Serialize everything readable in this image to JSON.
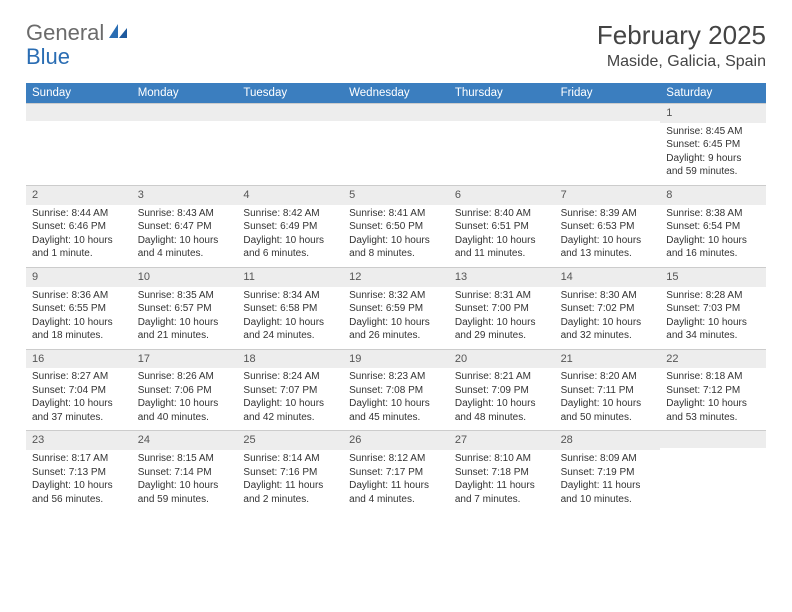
{
  "logo": {
    "text1": "General",
    "text2": "Blue"
  },
  "title": "February 2025",
  "location": "Maside, Galicia, Spain",
  "colors": {
    "header_bg": "#3b7ebf",
    "header_text": "#ffffff",
    "daynum_bg": "#ededed",
    "border": "#cccccc",
    "logo_gray": "#6b6b6b",
    "logo_blue": "#2a6db3"
  },
  "weekdays": [
    "Sunday",
    "Monday",
    "Tuesday",
    "Wednesday",
    "Thursday",
    "Friday",
    "Saturday"
  ],
  "weeks": [
    [
      {
        "n": "",
        "sr": "",
        "ss": "",
        "dl": ""
      },
      {
        "n": "",
        "sr": "",
        "ss": "",
        "dl": ""
      },
      {
        "n": "",
        "sr": "",
        "ss": "",
        "dl": ""
      },
      {
        "n": "",
        "sr": "",
        "ss": "",
        "dl": ""
      },
      {
        "n": "",
        "sr": "",
        "ss": "",
        "dl": ""
      },
      {
        "n": "",
        "sr": "",
        "ss": "",
        "dl": ""
      },
      {
        "n": "1",
        "sr": "Sunrise: 8:45 AM",
        "ss": "Sunset: 6:45 PM",
        "dl": "Daylight: 9 hours and 59 minutes."
      }
    ],
    [
      {
        "n": "2",
        "sr": "Sunrise: 8:44 AM",
        "ss": "Sunset: 6:46 PM",
        "dl": "Daylight: 10 hours and 1 minute."
      },
      {
        "n": "3",
        "sr": "Sunrise: 8:43 AM",
        "ss": "Sunset: 6:47 PM",
        "dl": "Daylight: 10 hours and 4 minutes."
      },
      {
        "n": "4",
        "sr": "Sunrise: 8:42 AM",
        "ss": "Sunset: 6:49 PM",
        "dl": "Daylight: 10 hours and 6 minutes."
      },
      {
        "n": "5",
        "sr": "Sunrise: 8:41 AM",
        "ss": "Sunset: 6:50 PM",
        "dl": "Daylight: 10 hours and 8 minutes."
      },
      {
        "n": "6",
        "sr": "Sunrise: 8:40 AM",
        "ss": "Sunset: 6:51 PM",
        "dl": "Daylight: 10 hours and 11 minutes."
      },
      {
        "n": "7",
        "sr": "Sunrise: 8:39 AM",
        "ss": "Sunset: 6:53 PM",
        "dl": "Daylight: 10 hours and 13 minutes."
      },
      {
        "n": "8",
        "sr": "Sunrise: 8:38 AM",
        "ss": "Sunset: 6:54 PM",
        "dl": "Daylight: 10 hours and 16 minutes."
      }
    ],
    [
      {
        "n": "9",
        "sr": "Sunrise: 8:36 AM",
        "ss": "Sunset: 6:55 PM",
        "dl": "Daylight: 10 hours and 18 minutes."
      },
      {
        "n": "10",
        "sr": "Sunrise: 8:35 AM",
        "ss": "Sunset: 6:57 PM",
        "dl": "Daylight: 10 hours and 21 minutes."
      },
      {
        "n": "11",
        "sr": "Sunrise: 8:34 AM",
        "ss": "Sunset: 6:58 PM",
        "dl": "Daylight: 10 hours and 24 minutes."
      },
      {
        "n": "12",
        "sr": "Sunrise: 8:32 AM",
        "ss": "Sunset: 6:59 PM",
        "dl": "Daylight: 10 hours and 26 minutes."
      },
      {
        "n": "13",
        "sr": "Sunrise: 8:31 AM",
        "ss": "Sunset: 7:00 PM",
        "dl": "Daylight: 10 hours and 29 minutes."
      },
      {
        "n": "14",
        "sr": "Sunrise: 8:30 AM",
        "ss": "Sunset: 7:02 PM",
        "dl": "Daylight: 10 hours and 32 minutes."
      },
      {
        "n": "15",
        "sr": "Sunrise: 8:28 AM",
        "ss": "Sunset: 7:03 PM",
        "dl": "Daylight: 10 hours and 34 minutes."
      }
    ],
    [
      {
        "n": "16",
        "sr": "Sunrise: 8:27 AM",
        "ss": "Sunset: 7:04 PM",
        "dl": "Daylight: 10 hours and 37 minutes."
      },
      {
        "n": "17",
        "sr": "Sunrise: 8:26 AM",
        "ss": "Sunset: 7:06 PM",
        "dl": "Daylight: 10 hours and 40 minutes."
      },
      {
        "n": "18",
        "sr": "Sunrise: 8:24 AM",
        "ss": "Sunset: 7:07 PM",
        "dl": "Daylight: 10 hours and 42 minutes."
      },
      {
        "n": "19",
        "sr": "Sunrise: 8:23 AM",
        "ss": "Sunset: 7:08 PM",
        "dl": "Daylight: 10 hours and 45 minutes."
      },
      {
        "n": "20",
        "sr": "Sunrise: 8:21 AM",
        "ss": "Sunset: 7:09 PM",
        "dl": "Daylight: 10 hours and 48 minutes."
      },
      {
        "n": "21",
        "sr": "Sunrise: 8:20 AM",
        "ss": "Sunset: 7:11 PM",
        "dl": "Daylight: 10 hours and 50 minutes."
      },
      {
        "n": "22",
        "sr": "Sunrise: 8:18 AM",
        "ss": "Sunset: 7:12 PM",
        "dl": "Daylight: 10 hours and 53 minutes."
      }
    ],
    [
      {
        "n": "23",
        "sr": "Sunrise: 8:17 AM",
        "ss": "Sunset: 7:13 PM",
        "dl": "Daylight: 10 hours and 56 minutes."
      },
      {
        "n": "24",
        "sr": "Sunrise: 8:15 AM",
        "ss": "Sunset: 7:14 PM",
        "dl": "Daylight: 10 hours and 59 minutes."
      },
      {
        "n": "25",
        "sr": "Sunrise: 8:14 AM",
        "ss": "Sunset: 7:16 PM",
        "dl": "Daylight: 11 hours and 2 minutes."
      },
      {
        "n": "26",
        "sr": "Sunrise: 8:12 AM",
        "ss": "Sunset: 7:17 PM",
        "dl": "Daylight: 11 hours and 4 minutes."
      },
      {
        "n": "27",
        "sr": "Sunrise: 8:10 AM",
        "ss": "Sunset: 7:18 PM",
        "dl": "Daylight: 11 hours and 7 minutes."
      },
      {
        "n": "28",
        "sr": "Sunrise: 8:09 AM",
        "ss": "Sunset: 7:19 PM",
        "dl": "Daylight: 11 hours and 10 minutes."
      },
      {
        "n": "",
        "sr": "",
        "ss": "",
        "dl": ""
      }
    ]
  ]
}
